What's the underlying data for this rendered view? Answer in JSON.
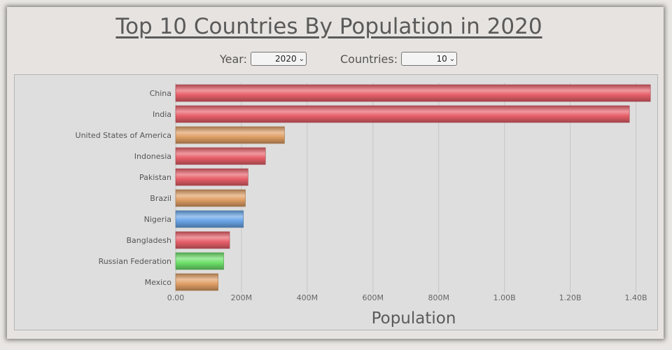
{
  "title": "Top 10 Countries By Population in 2020",
  "controls": {
    "year_label": "Year:",
    "year_value": "2020",
    "countries_label": "Countries:",
    "countries_value": "10"
  },
  "chart_data": {
    "type": "bar",
    "orientation": "horizontal",
    "title": "Top 10 Countries By Population in 2020",
    "xlabel": "Population",
    "ylabel": "",
    "xlim": [
      0,
      1450000000
    ],
    "grid": true,
    "tick_values": [
      0,
      200000000,
      400000000,
      600000000,
      800000000,
      1000000000,
      1200000000,
      1400000000
    ],
    "tick_labels": [
      "0.00",
      "200M",
      "400M",
      "600M",
      "800M",
      "1.00B",
      "1.20B",
      "1.40B"
    ],
    "categories": [
      "China",
      "India",
      "United States of America",
      "Indonesia",
      "Pakistan",
      "Brazil",
      "Nigeria",
      "Bangladesh",
      "Russian Federation",
      "Mexico"
    ],
    "values": [
      1444000000,
      1380000000,
      331000000,
      273000000,
      220000000,
      212000000,
      206000000,
      164000000,
      146000000,
      129000000
    ],
    "colors": [
      "#e8606a",
      "#e8606a",
      "#e0a066",
      "#e8606a",
      "#e8606a",
      "#e0a066",
      "#6aa6e8",
      "#e8606a",
      "#6ee06a",
      "#e0a066"
    ]
  }
}
